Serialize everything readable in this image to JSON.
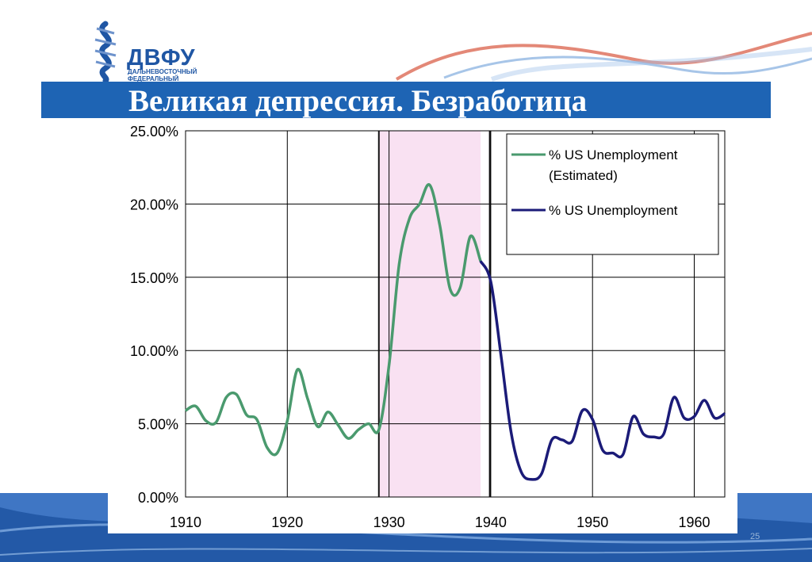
{
  "slide": {
    "title": "Великая депрессия. Безработица",
    "number": "25"
  },
  "logo": {
    "name": "ДВФУ",
    "subtitle_line1": "ДАЛЬНЕВОСТОЧНЫЙ",
    "subtitle_line2": "ФЕДЕРАЛЬНЫЙ"
  },
  "colors": {
    "title_bar": "#1e64b4",
    "estimated_series": "#4a9a6e",
    "actual_series": "#1b1b78",
    "shading": "#f9e1f2",
    "logo": "#1f56a4"
  },
  "chart_data": {
    "type": "line",
    "title": "",
    "xlabel": "",
    "ylabel": "",
    "xlim": [
      1910,
      1963
    ],
    "ylim": [
      0,
      25
    ],
    "x_ticks": [
      1910,
      1920,
      1930,
      1940,
      1950,
      1960
    ],
    "x_tick_labels": [
      "1910",
      "1920",
      "1930",
      "1940",
      "1950",
      "1960"
    ],
    "y_ticks": [
      0,
      5,
      10,
      15,
      20,
      25
    ],
    "y_tick_labels": [
      "0.00%",
      "5.00%",
      "10.00%",
      "15.00%",
      "20.00%",
      "25.00%"
    ],
    "grid": true,
    "legend_position": "top-right",
    "shaded_region": [
      1929,
      1939
    ],
    "vertical_lines": [
      1929,
      1939.9
    ],
    "series": [
      {
        "name": "% US Unemployment (Estimated)",
        "legend_lines": [
          "% US Unemployment",
          "(Estimated)"
        ],
        "color": "#4a9a6e",
        "x": [
          1910,
          1911,
          1912,
          1913,
          1914,
          1915,
          1916,
          1917,
          1918,
          1919,
          1920,
          1921,
          1922,
          1923,
          1924,
          1925,
          1926,
          1927,
          1928,
          1929,
          1930,
          1931,
          1932,
          1933,
          1934,
          1935,
          1936,
          1937,
          1938,
          1939
        ],
        "y": [
          5.9,
          6.2,
          5.2,
          5.1,
          6.8,
          7.0,
          5.6,
          5.3,
          3.4,
          3.0,
          5.2,
          8.7,
          6.7,
          4.8,
          5.8,
          4.9,
          4.0,
          4.6,
          5.0,
          4.6,
          9.0,
          15.9,
          19.0,
          20.0,
          21.3,
          18.5,
          14.2,
          14.3,
          17.8,
          16.1
        ]
      },
      {
        "name": "% US Unemployment",
        "legend_lines": [
          "% US Unemployment"
        ],
        "color": "#1b1b78",
        "x": [
          1939,
          1940,
          1941,
          1942,
          1943,
          1944,
          1945,
          1946,
          1947,
          1948,
          1949,
          1950,
          1951,
          1952,
          1953,
          1954,
          1955,
          1956,
          1957,
          1958,
          1959,
          1960,
          1961,
          1962,
          1963
        ],
        "y": [
          16.1,
          14.7,
          9.7,
          4.4,
          1.7,
          1.2,
          1.6,
          3.9,
          3.9,
          3.8,
          5.9,
          5.3,
          3.2,
          3.0,
          2.9,
          5.5,
          4.3,
          4.1,
          4.3,
          6.8,
          5.4,
          5.5,
          6.6,
          5.4,
          5.7
        ]
      }
    ]
  }
}
